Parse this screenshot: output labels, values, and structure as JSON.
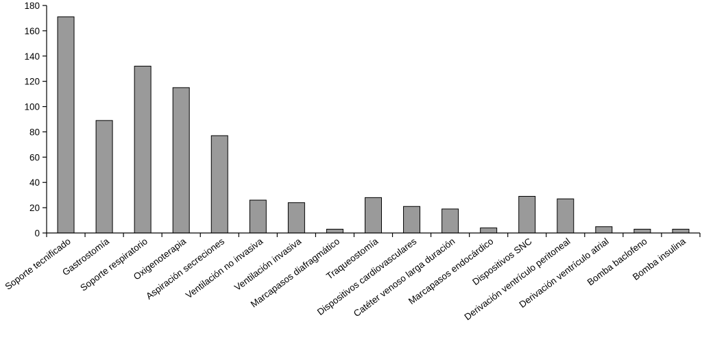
{
  "chart_data": {
    "type": "bar",
    "title": "",
    "xlabel": "",
    "ylabel": "",
    "ylim": [
      0,
      180
    ],
    "yticks": [
      0,
      20,
      40,
      60,
      80,
      100,
      120,
      140,
      160,
      180
    ],
    "grid": false,
    "bar_color": "#9a9a9a",
    "categories": [
      "Soporte tecnificado",
      "Gastrostomía",
      "Soporte respiratorio",
      "Oxigenoterapia",
      "Aspiración secreciones",
      "Ventilación no invasiva",
      "Ventilación invasiva",
      "Marcapasos diafragmático",
      "Traqueostomía",
      "Dispositivos cardiovasculares",
      "Catéter venoso larga duración",
      "Marcapasos endocárdico",
      "Dispositivos SNC",
      "Derivación ventrículo peritoneal",
      "Derivación ventrículo atrial",
      "Bomba baclofeno",
      "Bomba insulina"
    ],
    "values": [
      171,
      89,
      132,
      115,
      77,
      26,
      24,
      3,
      28,
      21,
      19,
      4,
      29,
      27,
      5,
      3,
      3
    ]
  }
}
